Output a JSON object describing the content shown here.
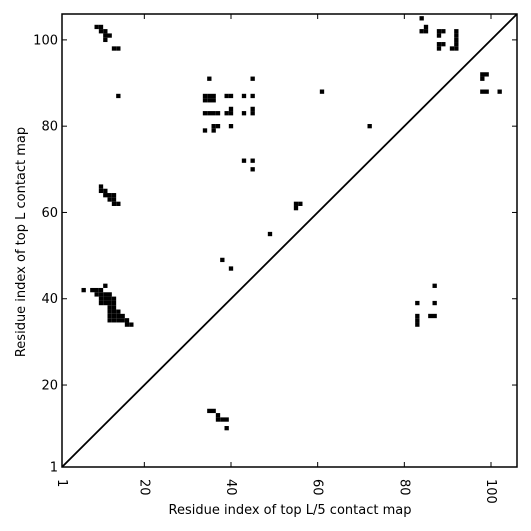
{
  "chart_data": {
    "type": "heatmap",
    "title": "",
    "xlabel": "Residue index of top L/5 contact map",
    "ylabel": "Residue index of top L contact map",
    "xlim": [
      1,
      106
    ],
    "ylim": [
      1,
      106
    ],
    "xticks": [
      1,
      20,
      40,
      60,
      80,
      100
    ],
    "yticks": [
      1,
      20,
      40,
      60,
      80,
      100
    ],
    "xtick_labels": [
      "1",
      "20",
      "40",
      "60",
      "80",
      "100"
    ],
    "ytick_labels": [
      "1",
      "20",
      "40",
      "60",
      "80",
      "100"
    ],
    "xtick_rotation": 90,
    "diagonal": true,
    "color": "#000000",
    "grid": false,
    "upper_triangle_contacts": [
      [
        9,
        103
      ],
      [
        10,
        103
      ],
      [
        10,
        102
      ],
      [
        11,
        102
      ],
      [
        11,
        101
      ],
      [
        11,
        100
      ],
      [
        12,
        101
      ],
      [
        13,
        98
      ],
      [
        14,
        98
      ],
      [
        14,
        87
      ],
      [
        35,
        91
      ],
      [
        34,
        87
      ],
      [
        35,
        87
      ],
      [
        36,
        87
      ],
      [
        34,
        86
      ],
      [
        35,
        86
      ],
      [
        36,
        86
      ],
      [
        39,
        87
      ],
      [
        40,
        87
      ],
      [
        43,
        87
      ],
      [
        45,
        87
      ],
      [
        34,
        83
      ],
      [
        35,
        83
      ],
      [
        36,
        83
      ],
      [
        37,
        83
      ],
      [
        39,
        83
      ],
      [
        40,
        83
      ],
      [
        40,
        84
      ],
      [
        43,
        83
      ],
      [
        45,
        84
      ],
      [
        45,
        83
      ],
      [
        45,
        91
      ],
      [
        34,
        79
      ],
      [
        36,
        80
      ],
      [
        37,
        80
      ],
      [
        36,
        79
      ],
      [
        40,
        80
      ],
      [
        43,
        72
      ],
      [
        45,
        72
      ],
      [
        45,
        70
      ],
      [
        61,
        88
      ],
      [
        72,
        80
      ],
      [
        84,
        105
      ],
      [
        84,
        102
      ],
      [
        85,
        102
      ],
      [
        85,
        103
      ],
      [
        88,
        102
      ],
      [
        89,
        102
      ],
      [
        88,
        101
      ],
      [
        88,
        99
      ],
      [
        89,
        99
      ],
      [
        88,
        98
      ],
      [
        91,
        98
      ],
      [
        92,
        98
      ],
      [
        92,
        99
      ],
      [
        92,
        100
      ],
      [
        92,
        101
      ],
      [
        92,
        102
      ],
      [
        98,
        92
      ],
      [
        99,
        92
      ],
      [
        98,
        91
      ],
      [
        98,
        88
      ],
      [
        99,
        88
      ],
      [
        102,
        88
      ]
    ],
    "lower_triangle_contacts": [
      [
        10,
        66
      ],
      [
        10,
        65
      ],
      [
        11,
        65
      ],
      [
        11,
        64
      ],
      [
        12,
        64
      ],
      [
        13,
        64
      ],
      [
        12,
        63
      ],
      [
        13,
        63
      ],
      [
        13,
        62
      ],
      [
        14,
        62
      ],
      [
        55,
        62
      ],
      [
        56,
        62
      ],
      [
        55,
        61
      ],
      [
        49,
        55
      ],
      [
        38,
        49
      ],
      [
        40,
        47
      ],
      [
        6,
        42
      ],
      [
        8,
        42
      ],
      [
        9,
        42
      ],
      [
        10,
        42
      ],
      [
        11,
        43
      ],
      [
        9,
        41
      ],
      [
        10,
        41
      ],
      [
        11,
        41
      ],
      [
        12,
        41
      ],
      [
        10,
        40
      ],
      [
        11,
        40
      ],
      [
        12,
        40
      ],
      [
        13,
        40
      ],
      [
        10,
        39
      ],
      [
        11,
        39
      ],
      [
        12,
        39
      ],
      [
        13,
        39
      ],
      [
        12,
        38
      ],
      [
        13,
        38
      ],
      [
        12,
        37
      ],
      [
        13,
        37
      ],
      [
        14,
        37
      ],
      [
        12,
        36
      ],
      [
        13,
        36
      ],
      [
        14,
        36
      ],
      [
        15,
        36
      ],
      [
        12,
        35
      ],
      [
        13,
        35
      ],
      [
        14,
        35
      ],
      [
        15,
        35
      ],
      [
        16,
        35
      ],
      [
        16,
        34
      ],
      [
        17,
        34
      ],
      [
        35,
        14
      ],
      [
        36,
        14
      ],
      [
        37,
        13
      ],
      [
        37,
        12
      ],
      [
        38,
        12
      ],
      [
        39,
        12
      ],
      [
        39,
        10
      ],
      [
        83,
        39
      ],
      [
        83,
        36
      ],
      [
        83,
        35
      ],
      [
        83,
        34
      ],
      [
        86,
        36
      ],
      [
        87,
        36
      ],
      [
        87,
        39
      ],
      [
        87,
        43
      ]
    ]
  }
}
